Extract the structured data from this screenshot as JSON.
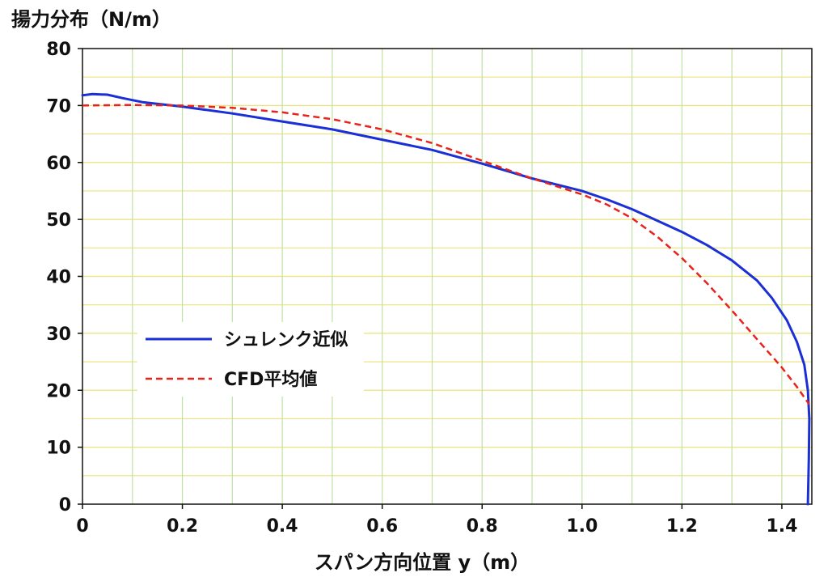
{
  "chart_data": {
    "type": "line",
    "ylabel": "揚力分布（N/m）",
    "xlabel": "スパン方向位置 y（m）",
    "xlim": [
      0,
      1.46
    ],
    "ylim": [
      0,
      80
    ],
    "x_ticks": [
      0,
      0.2,
      0.4,
      0.6,
      0.8,
      1.0,
      1.2,
      1.4
    ],
    "x_tick_labels": [
      "0",
      "0.2",
      "0.4",
      "0.6",
      "0.8",
      "1.0",
      "1.2",
      "1.4"
    ],
    "y_ticks": [
      0,
      10,
      20,
      30,
      40,
      50,
      60,
      70,
      80
    ],
    "y_tick_labels": [
      "0",
      "10",
      "20",
      "30",
      "40",
      "50",
      "60",
      "70",
      "80"
    ],
    "grid": true,
    "legend_position": "middle-left",
    "series": [
      {
        "name": "シュレンク近似",
        "color": "#1a2fd6",
        "style": "solid",
        "points": [
          [
            0,
            71.8
          ],
          [
            0.02,
            72.0
          ],
          [
            0.05,
            71.9
          ],
          [
            0.08,
            71.3
          ],
          [
            0.12,
            70.6
          ],
          [
            0.2,
            69.8
          ],
          [
            0.3,
            68.6
          ],
          [
            0.4,
            67.2
          ],
          [
            0.5,
            65.8
          ],
          [
            0.6,
            64.0
          ],
          [
            0.7,
            62.2
          ],
          [
            0.8,
            59.8
          ],
          [
            0.9,
            57.2
          ],
          [
            1.0,
            55.0
          ],
          [
            1.05,
            53.5
          ],
          [
            1.1,
            51.8
          ],
          [
            1.15,
            49.8
          ],
          [
            1.2,
            47.8
          ],
          [
            1.25,
            45.5
          ],
          [
            1.3,
            42.8
          ],
          [
            1.35,
            39.3
          ],
          [
            1.38,
            36.2
          ],
          [
            1.41,
            32.3
          ],
          [
            1.43,
            28.5
          ],
          [
            1.445,
            24.5
          ],
          [
            1.452,
            20.0
          ],
          [
            1.455,
            15.0
          ],
          [
            1.454,
            8.0
          ],
          [
            1.452,
            0
          ]
        ]
      },
      {
        "name": "CFD平均値",
        "color": "#e8231c",
        "style": "dashed",
        "points": [
          [
            0,
            70.0
          ],
          [
            0.1,
            70.1
          ],
          [
            0.2,
            70.0
          ],
          [
            0.3,
            69.6
          ],
          [
            0.4,
            68.8
          ],
          [
            0.5,
            67.6
          ],
          [
            0.6,
            65.8
          ],
          [
            0.7,
            63.4
          ],
          [
            0.8,
            60.3
          ],
          [
            0.9,
            57.2
          ],
          [
            1.0,
            54.4
          ],
          [
            1.05,
            52.6
          ],
          [
            1.1,
            50.2
          ],
          [
            1.15,
            47.0
          ],
          [
            1.2,
            43.2
          ],
          [
            1.25,
            38.8
          ],
          [
            1.3,
            34.0
          ],
          [
            1.35,
            29.0
          ],
          [
            1.4,
            24.0
          ],
          [
            1.43,
            20.6
          ],
          [
            1.455,
            17.5
          ]
        ]
      }
    ]
  }
}
